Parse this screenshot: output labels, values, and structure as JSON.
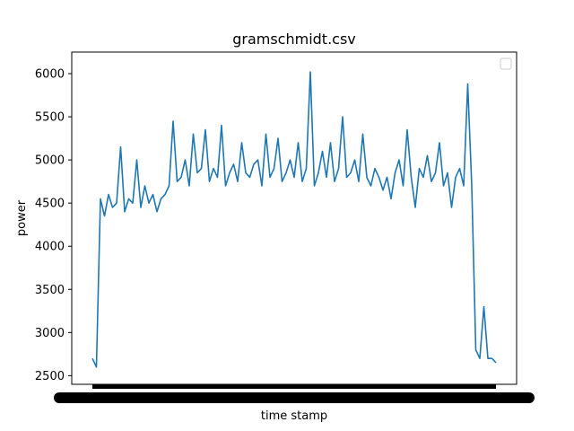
{
  "chart_data": {
    "type": "line",
    "title": "gramschmidt.csv",
    "xlabel": "time stamp",
    "ylabel": "power",
    "ylim": [
      2400,
      6250
    ],
    "yticks": [
      2500,
      3000,
      3500,
      4000,
      4500,
      5000,
      5500,
      6000
    ],
    "grid": false,
    "legend": {
      "placement": "top-right",
      "entries": []
    },
    "x_tick_labels_note": "dense overlapping tick labels (unreadable)",
    "series": [
      {
        "color": "#1f77b4",
        "x": [
          0,
          1,
          2,
          3,
          4,
          5,
          6,
          7,
          8,
          9,
          10,
          11,
          12,
          13,
          14,
          15,
          16,
          17,
          18,
          19,
          20,
          21,
          22,
          23,
          24,
          25,
          26,
          27,
          28,
          29,
          30,
          31,
          32,
          33,
          34,
          35,
          36,
          37,
          38,
          39,
          40,
          41,
          42,
          43,
          44,
          45,
          46,
          47,
          48,
          49,
          50,
          51,
          52,
          53,
          54,
          55,
          56,
          57,
          58,
          59,
          60,
          61,
          62,
          63,
          64,
          65,
          66,
          67,
          68,
          69,
          70,
          71,
          72,
          73,
          74,
          75,
          76,
          77,
          78,
          79,
          80,
          81,
          82,
          83,
          84,
          85,
          86,
          87,
          88,
          89,
          90,
          91,
          92,
          93,
          94,
          95,
          96,
          97,
          98,
          99,
          100
        ],
        "values": [
          2700,
          2600,
          4550,
          4350,
          4600,
          4450,
          4500,
          5150,
          4400,
          4550,
          4500,
          5000,
          4450,
          4700,
          4500,
          4600,
          4400,
          4550,
          4600,
          4700,
          5450,
          4750,
          4800,
          5000,
          4700,
          5300,
          4850,
          4900,
          5350,
          4750,
          4900,
          4800,
          5400,
          4700,
          4850,
          4950,
          4750,
          5200,
          4850,
          4800,
          4950,
          5000,
          4700,
          5300,
          4800,
          4900,
          5250,
          4750,
          4850,
          5000,
          4800,
          5200,
          4750,
          4900,
          6020,
          4700,
          4850,
          5100,
          4800,
          5200,
          4750,
          4900,
          5500,
          4800,
          4850,
          5000,
          4750,
          5300,
          4800,
          4700,
          4900,
          4800,
          4650,
          4800,
          4550,
          4850,
          5000,
          4700,
          5350,
          4800,
          4450,
          4900,
          4800,
          5050,
          4750,
          4850,
          5200,
          4700,
          4850,
          4450,
          4800,
          4900,
          4700,
          5880,
          4700,
          2800,
          2700,
          3300,
          2700,
          2700,
          2650
        ]
      }
    ]
  }
}
